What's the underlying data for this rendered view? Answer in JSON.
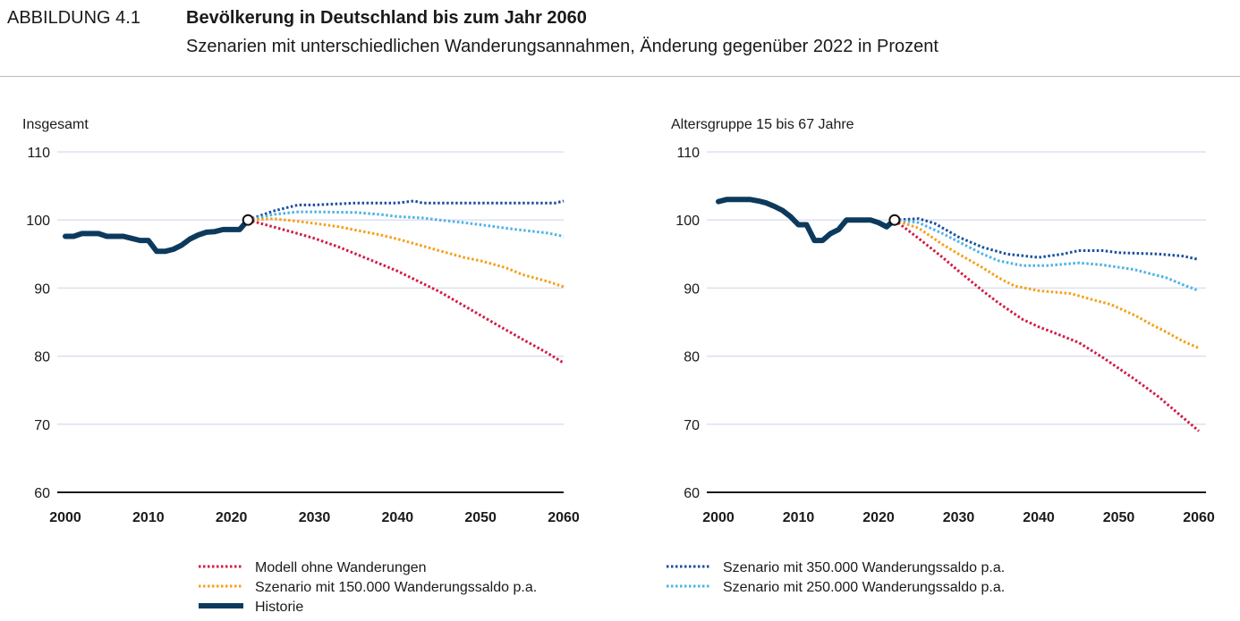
{
  "header": {
    "figure_label": "ABBILDUNG 4.1",
    "title": "Bevölkerung in Deutschland bis zum Jahr 2060",
    "subtitle": "Szenarien mit unterschiedlichen Wanderungsannahmen, Änderung gegenüber 2022 in Prozent"
  },
  "legend": {
    "items": [
      {
        "label": "Modell ohne Wanderungen",
        "color": "#d01c44",
        "style": "dotted"
      },
      {
        "label": "Szenario mit 150.000 Wanderungssaldo p.a.",
        "color": "#f5a01a",
        "style": "dotted"
      },
      {
        "label": "Historie",
        "color": "#0d3a5c",
        "style": "solid"
      },
      {
        "label": "Szenario mit 350.000 Wanderungssaldo p.a.",
        "color": "#1a4f9e",
        "style": "dotted"
      },
      {
        "label": "Szenario mit 250.000 Wanderungssaldo p.a.",
        "color": "#4db3e6",
        "style": "dotted"
      }
    ]
  },
  "chart_data": [
    {
      "type": "line",
      "title": "Insgesamt",
      "xlim": [
        2000,
        2060
      ],
      "ylim": [
        60,
        110
      ],
      "xticks": [
        2000,
        2010,
        2020,
        2030,
        2040,
        2050,
        2060
      ],
      "yticks": [
        60,
        70,
        80,
        90,
        100,
        110
      ],
      "grid": true,
      "legend_position": "bottom",
      "marker": {
        "x": 2022,
        "y": 100
      },
      "series": [
        {
          "name": "Historie",
          "color": "#0d3a5c",
          "x": [
            2000,
            2001,
            2002,
            2003,
            2004,
            2005,
            2006,
            2007,
            2008,
            2009,
            2010,
            2011,
            2012,
            2013,
            2014,
            2015,
            2016,
            2017,
            2018,
            2019,
            2020,
            2021,
            2022
          ],
          "y": [
            97.6,
            97.6,
            98,
            98,
            98,
            97.6,
            97.6,
            97.6,
            97.3,
            97,
            97,
            95.4,
            95.4,
            95.7,
            96.3,
            97.2,
            97.8,
            98.2,
            98.3,
            98.6,
            98.6,
            98.6,
            100
          ]
        },
        {
          "name": "Modell ohne Wanderungen",
          "color": "#d01c44",
          "x": [
            2022,
            2025,
            2028,
            2030,
            2033,
            2035,
            2038,
            2040,
            2043,
            2045,
            2048,
            2050,
            2053,
            2055,
            2058,
            2060
          ],
          "y": [
            100,
            99,
            98,
            97.3,
            96,
            95,
            93.5,
            92.5,
            90.7,
            89.5,
            87.4,
            86,
            83.9,
            82.5,
            80.5,
            79
          ]
        },
        {
          "name": "Szenario mit 150.000 Wanderungssaldo p.a.",
          "color": "#f5a01a",
          "x": [
            2022,
            2025,
            2028,
            2030,
            2033,
            2035,
            2038,
            2040,
            2043,
            2045,
            2048,
            2050,
            2053,
            2055,
            2058,
            2060
          ],
          "y": [
            100,
            100.2,
            99.8,
            99.5,
            99,
            98.5,
            97.8,
            97.2,
            96.2,
            95.5,
            94.5,
            94,
            93,
            92,
            91,
            90.2
          ]
        },
        {
          "name": "Szenario mit 250.000 Wanderungssaldo p.a.",
          "color": "#4db3e6",
          "x": [
            2022,
            2025,
            2028,
            2030,
            2035,
            2038,
            2040,
            2043,
            2045,
            2048,
            2050,
            2053,
            2055,
            2058,
            2060
          ],
          "y": [
            100,
            100.8,
            101.2,
            101.2,
            101.1,
            100.8,
            100.5,
            100.3,
            100,
            99.6,
            99.3,
            98.8,
            98.5,
            98.1,
            97.6
          ]
        },
        {
          "name": "Szenario mit 350.000 Wanderungssaldo p.a.",
          "color": "#1a4f9e",
          "x": [
            2022,
            2025,
            2027,
            2028,
            2030,
            2035,
            2040,
            2042,
            2043,
            2050,
            2055,
            2059,
            2060
          ],
          "y": [
            100,
            101.3,
            101.9,
            102.2,
            102.2,
            102.5,
            102.5,
            102.8,
            102.5,
            102.5,
            102.5,
            102.5,
            102.8
          ]
        }
      ]
    },
    {
      "type": "line",
      "title": "Altersgruppe 15 bis 67 Jahre",
      "xlim": [
        2000,
        2060
      ],
      "ylim": [
        60,
        110
      ],
      "xticks": [
        2000,
        2010,
        2020,
        2030,
        2040,
        2050,
        2060
      ],
      "yticks": [
        60,
        70,
        80,
        90,
        100,
        110
      ],
      "grid": true,
      "legend_position": "bottom",
      "marker": {
        "x": 2022,
        "y": 100
      },
      "series": [
        {
          "name": "Historie",
          "color": "#0d3a5c",
          "x": [
            2000,
            2001,
            2002,
            2003,
            2004,
            2005,
            2006,
            2007,
            2008,
            2009,
            2010,
            2011,
            2012,
            2013,
            2014,
            2015,
            2016,
            2017,
            2018,
            2019,
            2020,
            2021,
            2022
          ],
          "y": [
            102.7,
            103,
            103,
            103,
            103,
            102.8,
            102.5,
            102,
            101.4,
            100.5,
            99.3,
            99.3,
            97,
            97,
            98,
            98.6,
            100,
            100,
            100,
            100,
            99.6,
            99,
            100
          ]
        },
        {
          "name": "Modell ohne Wanderungen",
          "color": "#d01c44",
          "x": [
            2022,
            2025,
            2028,
            2030,
            2033,
            2035,
            2038,
            2040,
            2042,
            2045,
            2048,
            2050,
            2052,
            2055,
            2058,
            2060
          ],
          "y": [
            100,
            97.3,
            94.5,
            92.5,
            89.6,
            87.8,
            85.4,
            84.3,
            83.4,
            82,
            79.8,
            78.2,
            76.6,
            74,
            71,
            69
          ]
        },
        {
          "name": "Szenario mit 150.000 Wanderungssaldo p.a.",
          "color": "#f5a01a",
          "x": [
            2022,
            2025,
            2028,
            2030,
            2033,
            2035,
            2037,
            2040,
            2044,
            2047,
            2049,
            2052,
            2054,
            2056,
            2058,
            2060
          ],
          "y": [
            100,
            98.8,
            96.4,
            95,
            93,
            91.5,
            90.3,
            89.6,
            89.2,
            88.2,
            87.6,
            86,
            84.7,
            83.5,
            82.2,
            81.2
          ]
        },
        {
          "name": "Szenario mit 250.000 Wanderungssaldo p.a.",
          "color": "#4db3e6",
          "x": [
            2022,
            2025,
            2028,
            2030,
            2033,
            2035,
            2038,
            2041,
            2045,
            2048,
            2052,
            2056,
            2058,
            2060
          ],
          "y": [
            100,
            99.6,
            98,
            96.8,
            95,
            94,
            93.3,
            93.3,
            93.7,
            93.4,
            92.7,
            91.5,
            90.5,
            89.6
          ]
        },
        {
          "name": "Szenario mit 350.000 Wanderungssaldo p.a.",
          "color": "#1a4f9e",
          "x": [
            2022,
            2025,
            2027,
            2030,
            2033,
            2036,
            2040,
            2043,
            2045,
            2048,
            2050,
            2055,
            2058,
            2060
          ],
          "y": [
            100,
            100.2,
            99.5,
            97.5,
            96,
            95,
            94.5,
            95,
            95.5,
            95.5,
            95.2,
            95,
            94.7,
            94.2
          ]
        }
      ]
    }
  ]
}
